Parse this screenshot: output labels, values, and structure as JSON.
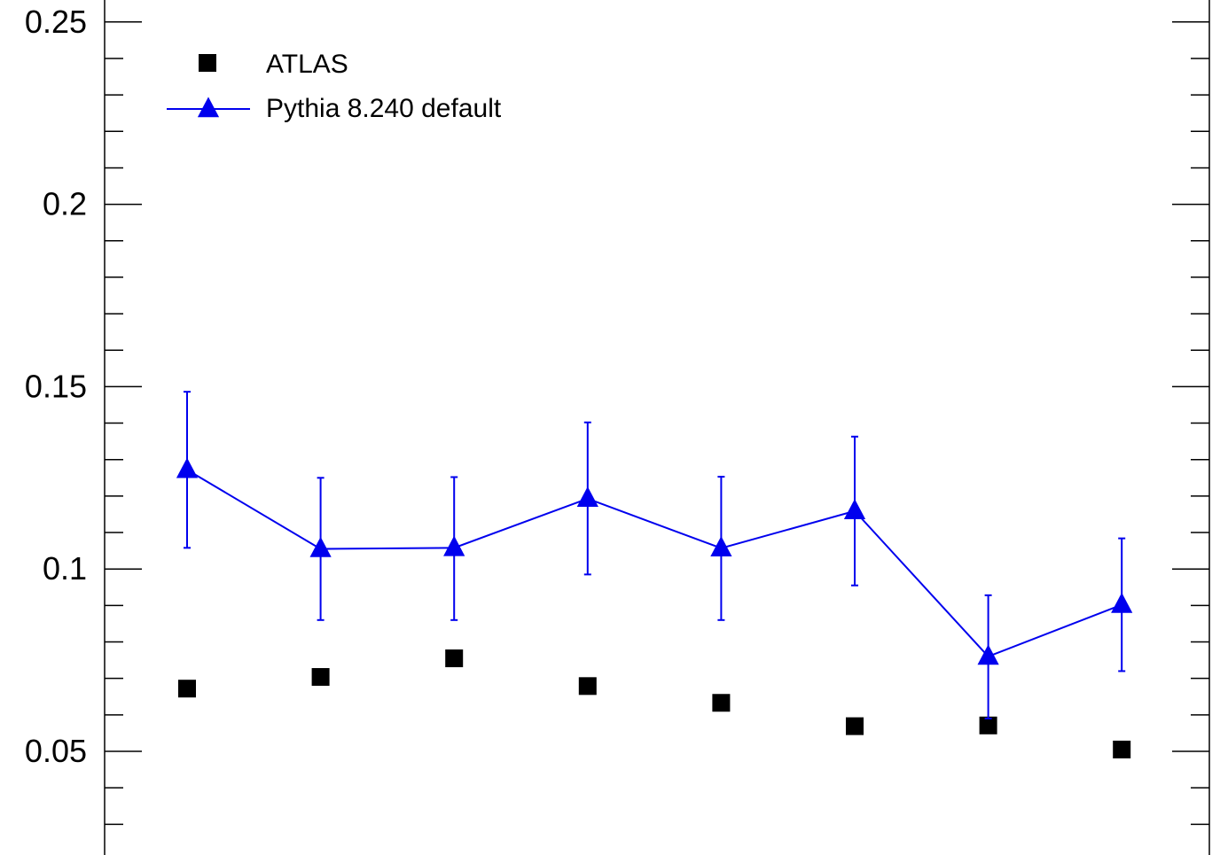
{
  "chart_data": {
    "type": "scatter",
    "title": "",
    "xlabel": "",
    "ylabel": "",
    "ylim": [
      0.025,
      0.2575
    ],
    "grid": false,
    "legend_position": "top-left",
    "x": [
      1,
      2,
      3,
      4,
      5,
      6,
      7,
      8
    ],
    "y_tick_labels": [
      "0.05",
      "0.1",
      "0.15",
      "0.2",
      "0.25"
    ],
    "series": [
      {
        "name": "ATLAS",
        "marker": "square",
        "line": false,
        "color": "#000000",
        "values": [
          0.0672,
          0.0704,
          0.0755,
          0.0679,
          0.0633,
          0.0569,
          0.0571,
          0.0505
        ]
      },
      {
        "name": "Pythia 8.240 default",
        "marker": "triangle",
        "line": true,
        "color": "#0000ee",
        "values": [
          0.1272,
          0.1055,
          0.1058,
          0.1193,
          0.1057,
          0.1159,
          0.076,
          0.0902
        ],
        "err_low": [
          0.1058,
          0.086,
          0.086,
          0.0985,
          0.086,
          0.0955,
          0.059,
          0.072
        ],
        "err_high": [
          0.1486,
          0.125,
          0.1252,
          0.1402,
          0.1253,
          0.1363,
          0.0928,
          0.1084
        ]
      }
    ]
  }
}
